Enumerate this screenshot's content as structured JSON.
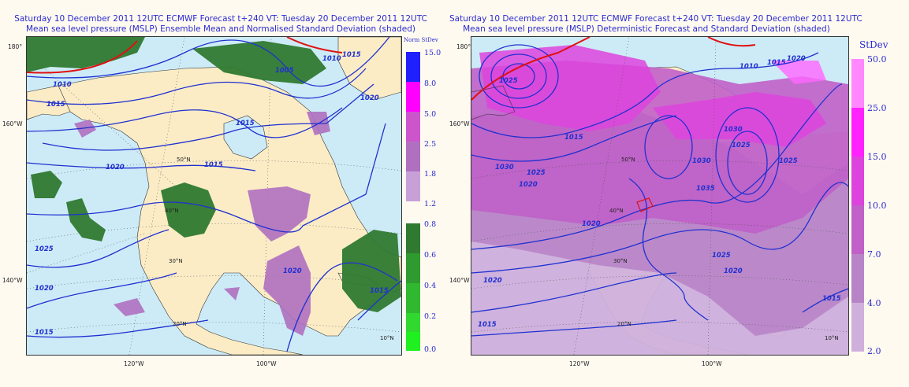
{
  "left_panel": {
    "title_line1": "Saturday 10 December 2011 12UTC ECMWF Forecast t+240  VT: Tuesday 20 December 2011 12UTC",
    "title_line2": "Mean sea level pressure (MSLP) Ensemble Mean and Normalised Standard Deviation (shaded)",
    "lon_labels": [
      "180°",
      "160°W",
      "140°W",
      "120°W",
      "100°W"
    ],
    "lat_labels": [
      "50°N",
      "40°N",
      "30°N",
      "20°N",
      "10°N"
    ],
    "isobar_labels": [
      "1010",
      "1015",
      "1020",
      "1015",
      "1005",
      "1010",
      "1015",
      "1020",
      "1025",
      "1020",
      "1015",
      "1020",
      "1015",
      "1015"
    ],
    "colorbar": {
      "title": "Norm StDev",
      "ticks": [
        "15.0",
        "8.0",
        "5.0",
        "2.5",
        "1.8",
        "1.2",
        "0.8",
        "0.6",
        "0.4",
        "0.2",
        "0.0"
      ],
      "colors": [
        "#2020ff",
        "#ff00ff",
        "#cc55cc",
        "#b070c0",
        "#c8a0d8",
        "#2f7a30",
        "#2f9a2f",
        "#30b830",
        "#30d830",
        "#20f020"
      ]
    }
  },
  "right_panel": {
    "title_line1": "Saturday 10 December 2011 12UTC ECMWF Forecast t+240  VT: Tuesday 20 December 2011 12UTC",
    "title_line2": "Mean sea level pressure (MSLP) Deterministic Forecast and Standard Deviation (shaded)",
    "lon_labels": [
      "180°",
      "160°W",
      "140°W",
      "120°W",
      "100°W"
    ],
    "lat_labels": [
      "50°N",
      "40°N",
      "30°N",
      "20°N",
      "10°N"
    ],
    "isobar_labels": [
      "1010",
      "1015",
      "1020",
      "1025",
      "1015",
      "1030",
      "1025",
      "1020",
      "1030",
      "1035",
      "1030",
      "1025",
      "1020",
      "1025",
      "1020",
      "1015",
      "1015",
      "1025",
      "1020"
    ],
    "colorbar": {
      "title": "StDev",
      "ticks": [
        "50.0",
        "25.0",
        "15.0",
        "10.0",
        "7.0",
        "4.0",
        "2.0"
      ],
      "colors": [
        "#ff88ff",
        "#ff22ff",
        "#dd44dd",
        "#c060c8",
        "#b884c8",
        "#cfb0dc"
      ]
    }
  },
  "colors": {
    "land": "#fbecc6",
    "ocean": "#cdebf7",
    "isobar": "#2030d0",
    "high_isobar": "#e01010",
    "title_text": "#2a2ad0"
  }
}
